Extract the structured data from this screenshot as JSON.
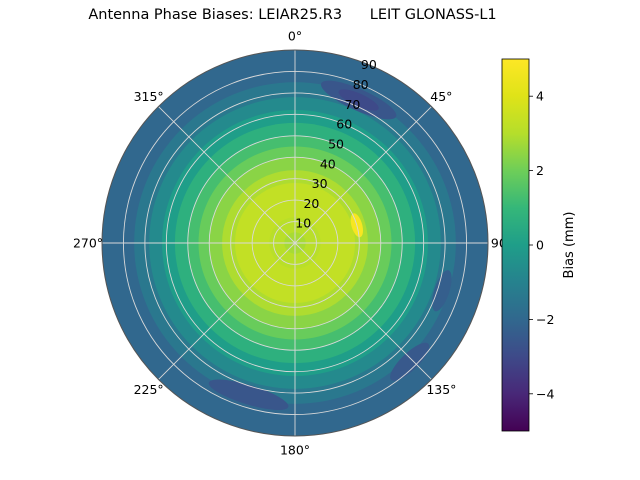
{
  "title": "Antenna Phase Biases: LEIAR25.R3      LEIT GLONASS-L1",
  "colors": {
    "background": "#ffffff",
    "text": "#000000",
    "grid": "#d9d9d9",
    "outline": "#555555",
    "viridis_stops": [
      [
        0.0,
        "#440154"
      ],
      [
        0.1,
        "#482878"
      ],
      [
        0.2,
        "#3e4a89"
      ],
      [
        0.3,
        "#31688e"
      ],
      [
        0.4,
        "#26828e"
      ],
      [
        0.5,
        "#1f9e89"
      ],
      [
        0.6,
        "#35b779"
      ],
      [
        0.7,
        "#6ece58"
      ],
      [
        0.8,
        "#b5de2b"
      ],
      [
        0.9,
        "#dfe318"
      ],
      [
        1.0,
        "#fde725"
      ]
    ]
  },
  "chart_data": {
    "type": "heatmap",
    "projection": "polar",
    "title": "Antenna Phase Biases: LEIAR25.R3 LEIT GLONASS-L1",
    "antenna": "LEIAR25.R3 LEIT",
    "signal": "GLONASS-L1",
    "colorbar_label": "Bias (mm)",
    "value_range": [
      -5,
      5
    ],
    "colorbar_ticks": [
      {
        "value": 4,
        "label": "4"
      },
      {
        "value": 2,
        "label": "2"
      },
      {
        "value": 0,
        "label": "0"
      },
      {
        "value": -2,
        "label": "−2"
      },
      {
        "value": -4,
        "label": "−4"
      }
    ],
    "azimuth_ticks": [
      {
        "deg": 0,
        "label": "0°"
      },
      {
        "deg": 45,
        "label": "45°"
      },
      {
        "deg": 90,
        "label": "90°"
      },
      {
        "deg": 135,
        "label": "135°"
      },
      {
        "deg": 180,
        "label": "180°"
      },
      {
        "deg": 225,
        "label": "225°"
      },
      {
        "deg": 270,
        "label": "270°"
      },
      {
        "deg": 315,
        "label": "315°"
      }
    ],
    "zenith_ticks": [
      {
        "deg": 10,
        "label": "10"
      },
      {
        "deg": 20,
        "label": "20"
      },
      {
        "deg": 30,
        "label": "30"
      },
      {
        "deg": 40,
        "label": "40"
      },
      {
        "deg": 50,
        "label": "50"
      },
      {
        "deg": 60,
        "label": "60"
      },
      {
        "deg": 70,
        "label": "70"
      },
      {
        "deg": 80,
        "label": "80"
      },
      {
        "deg": 90,
        "label": "90"
      }
    ],
    "radial_label_azimuth_deg": 22.5,
    "grid": true,
    "radial_profile": [
      {
        "zenith_min": 0,
        "zenith_max": 5,
        "bias_mm": 2.8
      },
      {
        "zenith_min": 5,
        "zenith_max": 12,
        "bias_mm": 3.1
      },
      {
        "zenith_min": 12,
        "zenith_max": 28,
        "bias_mm": 3.3
      },
      {
        "zenith_min": 28,
        "zenith_max": 34,
        "bias_mm": 2.9
      },
      {
        "zenith_min": 34,
        "zenith_max": 40,
        "bias_mm": 2.4
      },
      {
        "zenith_min": 40,
        "zenith_max": 45,
        "bias_mm": 1.9
      },
      {
        "zenith_min": 45,
        "zenith_max": 50,
        "bias_mm": 1.3
      },
      {
        "zenith_min": 50,
        "zenith_max": 56,
        "bias_mm": 0.7
      },
      {
        "zenith_min": 56,
        "zenith_max": 62,
        "bias_mm": 0.0
      },
      {
        "zenith_min": 62,
        "zenith_max": 68,
        "bias_mm": -0.7
      },
      {
        "zenith_min": 68,
        "zenith_max": 75,
        "bias_mm": -1.4
      },
      {
        "zenith_min": 75,
        "zenith_max": 90,
        "bias_mm": -2.0
      }
    ],
    "anomalies": [
      {
        "name": "bright-spot-east",
        "azimuth_deg": 74,
        "zenith_deg": 30,
        "az_extent_deg": 22,
        "zen_extent_deg": 5,
        "bias_mm": 4.8
      },
      {
        "name": "dark-patch-north-east",
        "azimuth_deg": 24,
        "zenith_deg": 73,
        "az_extent_deg": 30,
        "zen_extent_deg": 10,
        "bias_mm": -2.6
      },
      {
        "name": "dark-patch-north-east-core",
        "azimuth_deg": 24,
        "zenith_deg": 73,
        "az_extent_deg": 16,
        "zen_extent_deg": 6,
        "bias_mm": -3.0
      },
      {
        "name": "dark-patch-south-south-west",
        "azimuth_deg": 197,
        "zenith_deg": 74,
        "az_extent_deg": 30,
        "zen_extent_deg": 9,
        "bias_mm": -2.6
      },
      {
        "name": "dark-patch-south-east",
        "azimuth_deg": 136,
        "zenith_deg": 77,
        "az_extent_deg": 18,
        "zen_extent_deg": 8,
        "bias_mm": -2.5
      },
      {
        "name": "dark-patch-east",
        "azimuth_deg": 108,
        "zenith_deg": 72,
        "az_extent_deg": 16,
        "zen_extent_deg": 7,
        "bias_mm": -2.3
      }
    ]
  }
}
